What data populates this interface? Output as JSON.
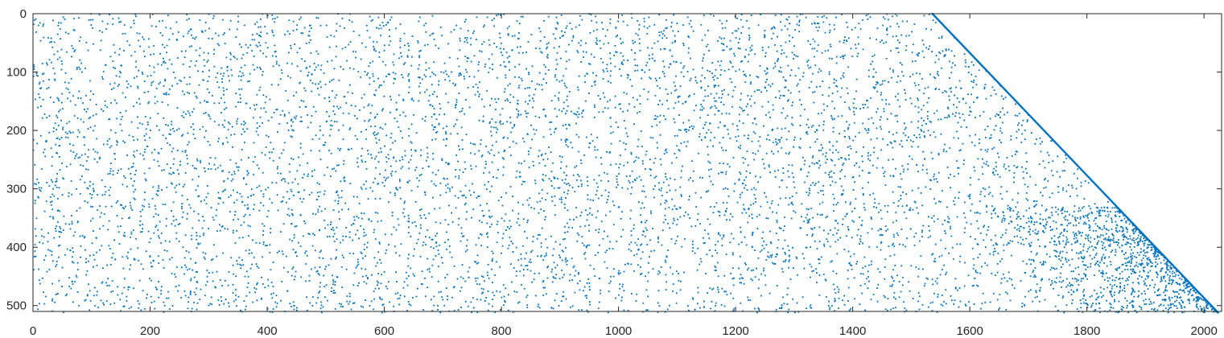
{
  "chart_data": {
    "type": "scatter",
    "title": "",
    "xlabel": "",
    "ylabel": "",
    "xlim": [
      0,
      2030
    ],
    "ylim": [
      0,
      510
    ],
    "y_reversed": true,
    "x_ticks": [
      0,
      200,
      400,
      600,
      800,
      1000,
      1200,
      1400,
      1600,
      1800,
      2000
    ],
    "y_ticks": [
      0,
      100,
      200,
      300,
      400,
      500
    ],
    "grid": false,
    "legend": "none",
    "marker_color": "#0072BD",
    "axis_color": "#262626",
    "sparsity_pattern": {
      "rows": 512,
      "cols": 2024,
      "diagonal_segment": {
        "start": [
          1536,
          0
        ],
        "end": [
          2024,
          512
        ]
      },
      "scatter_point_count": 6800,
      "lower_right_triangle_density_boost": true
    }
  }
}
